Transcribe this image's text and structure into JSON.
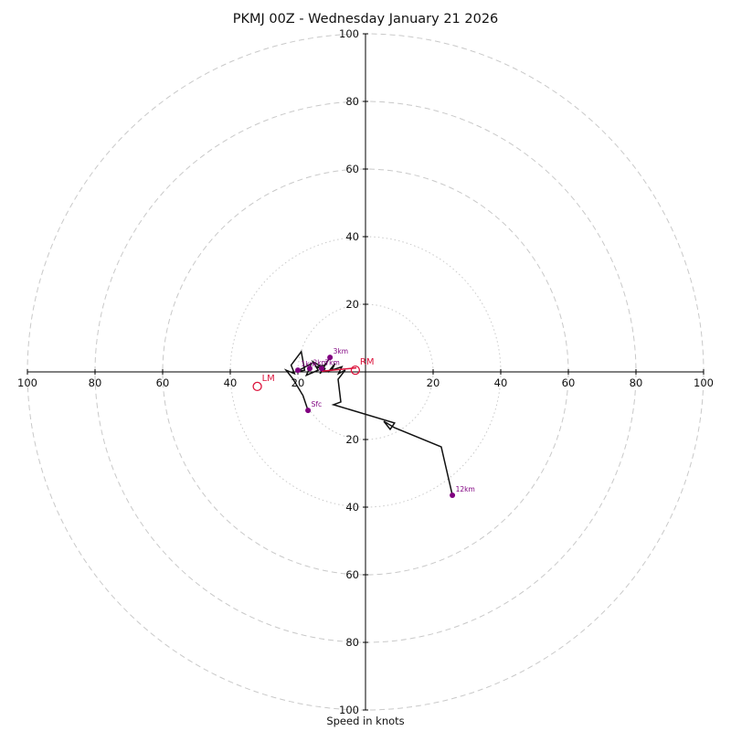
{
  "title": "PKMJ 00Z - Wednesday January 21 2026",
  "xlabel": "Speed in knots",
  "chart_data": {
    "type": "line",
    "subtype": "hodograph",
    "title": "PKMJ 00Z - Wednesday January 21 2026",
    "xlabel": "Speed in knots",
    "ylabel": "",
    "xlim": [
      -100,
      100
    ],
    "ylim": [
      -100,
      100
    ],
    "grid": "dashed concentric rings",
    "ring_radii_knots": [
      20,
      40,
      60,
      80,
      100
    ],
    "axis_tick_labels": [
      20,
      40,
      60,
      80,
      100
    ],
    "units": "knots",
    "series": [
      {
        "name": "wind-trace",
        "color": "#111111",
        "points_uv_knots": [
          [
            -17.0,
            -11.4
          ],
          [
            -18.5,
            -7.0
          ],
          [
            -21.5,
            -2.0
          ],
          [
            -23.5,
            0.5
          ],
          [
            -21.0,
            -0.5
          ],
          [
            -22.0,
            2.0
          ],
          [
            -19.0,
            6.0
          ],
          [
            -18.0,
            0.5
          ],
          [
            -20.5,
            0.0
          ],
          [
            -16.0,
            2.5
          ],
          [
            -17.5,
            -1.0
          ],
          [
            -14.0,
            0.5
          ],
          [
            -15.5,
            3.0
          ],
          [
            -12.0,
            1.0
          ],
          [
            -13.5,
            -0.5
          ],
          [
            -10.5,
            4.3
          ],
          [
            -12.0,
            2.0
          ],
          [
            -14.5,
            1.5
          ],
          [
            -11.0,
            0.0
          ],
          [
            -9.0,
            2.5
          ],
          [
            -10.0,
            0.5
          ],
          [
            -7.0,
            1.5
          ],
          [
            -8.0,
            -0.5
          ],
          [
            -6.0,
            0.5
          ],
          [
            -8.1,
            -2.2
          ],
          [
            -7.3,
            -8.9
          ],
          [
            -9.5,
            -9.7
          ],
          [
            8.6,
            -15.1
          ],
          [
            7.3,
            -17.0
          ],
          [
            5.4,
            -14.6
          ],
          [
            8.6,
            -16.5
          ],
          [
            22.4,
            -22.2
          ],
          [
            25.7,
            -36.5
          ]
        ]
      },
      {
        "name": "storm-motion-segment",
        "color": "#DC143C",
        "points_uv_knots": [
          [
            -13.0,
            0.2
          ],
          [
            -2.7,
            1.2
          ]
        ]
      }
    ],
    "marker_color": "#800080",
    "height_markers": [
      {
        "label": "Sfc",
        "u": -17.0,
        "v": -11.4
      },
      {
        "label": "1km",
        "u": -20.0,
        "v": 0.5
      },
      {
        "label": "2km",
        "u": -16.5,
        "v": 1.0
      },
      {
        "label": "3km",
        "u": -10.5,
        "v": 4.3
      },
      {
        "label": "7km",
        "u": -13.0,
        "v": 1.0
      },
      {
        "label": "12km",
        "u": 25.7,
        "v": -36.5
      }
    ],
    "storm_motion_color": "#DC143C",
    "storm_motion_markers": [
      {
        "label": "RM",
        "u": -3.0,
        "v": 0.5
      },
      {
        "label": "LM",
        "u": -32.0,
        "v": -4.3
      }
    ]
  }
}
